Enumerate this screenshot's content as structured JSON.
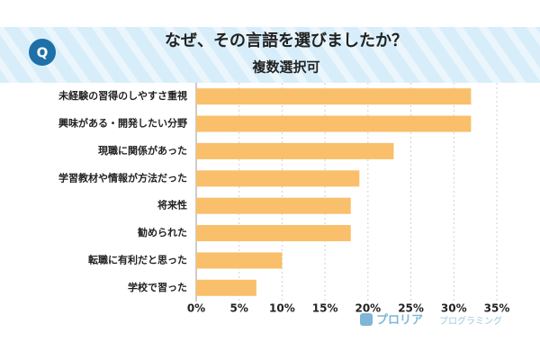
{
  "chart_data": {
    "type": "bar",
    "orientation": "horizontal",
    "title": "なぜ、その言語を選びましたか？",
    "subtitle": "複数選択可",
    "badge": "Q",
    "brand": "プロリア",
    "brand_sub": "プログラミング",
    "categories": [
      "未経験の習得のしやすさ重視",
      "興味がある・開発したい分野",
      "現職に関係があった",
      "学習教材や情報が方法だった",
      "将来性",
      "勧められた",
      "転職に有利だと思った",
      "学校で習った"
    ],
    "values": [
      32,
      32,
      23,
      19,
      18,
      18,
      10,
      7
    ],
    "color": "#f9bf6b",
    "xlim": [
      0,
      35
    ],
    "xticks": [
      {
        "value": 0,
        "label": "0%"
      },
      {
        "value": 5,
        "label": "5%"
      },
      {
        "value": 10,
        "label": "10%"
      },
      {
        "value": 15,
        "label": "15%"
      },
      {
        "value": 20,
        "label": "20%"
      },
      {
        "value": 25,
        "label": "25%"
      },
      {
        "value": 30,
        "label": "30%"
      },
      {
        "value": 35,
        "label": "35%"
      }
    ],
    "grid": true
  }
}
